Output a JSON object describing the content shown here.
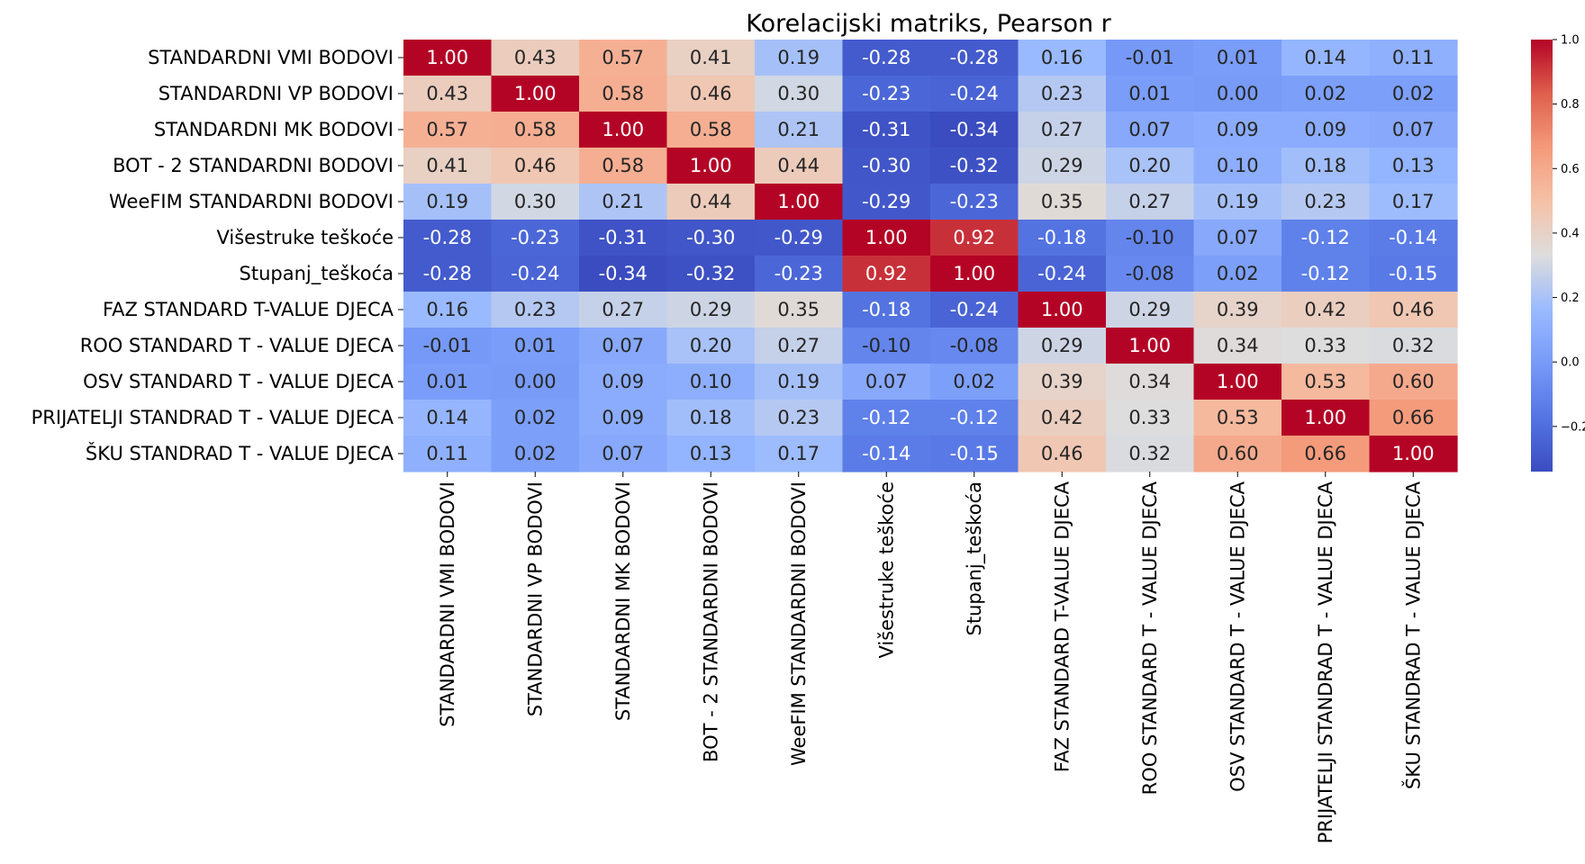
{
  "chart_data": {
    "type": "heatmap",
    "title": "Korelacijski matriks, Pearson r",
    "xlabel": "",
    "ylabel": "",
    "row_labels": [
      "STANDARDNI VMI BODOVI",
      "STANDARDNI VP BODOVI",
      "STANDARDNI MK BODOVI",
      "BOT - 2 STANDARDNI BODOVI",
      "WeeFIM STANDARDNI BODOVI",
      "Višestruke teškoće",
      "Stupanj_teškoća",
      "FAZ STANDARD T-VALUE DJECA",
      "ROO STANDARD T - VALUE DJECA",
      "OSV STANDARD T - VALUE DJECA",
      "PRIJATELJI STANDRAD T - VALUE DJECA",
      "ŠKU STANDRAD T - VALUE DJECA"
    ],
    "column_labels": [
      "STANDARDNI VMI BODOVI",
      "STANDARDNI VP BODOVI",
      "STANDARDNI MK BODOVI",
      "BOT - 2 STANDARDNI BODOVI",
      "WeeFIM STANDARDNI BODOVI",
      "Višestruke teškoće",
      "Stupanj_teškoća",
      "FAZ STANDARD T-VALUE DJECA",
      "ROO STANDARD T - VALUE DJECA",
      "OSV STANDARD T - VALUE DJECA",
      "PRIJATELJI STANDRAD T - VALUE DJECA",
      "ŠKU STANDRAD T - VALUE DJECA"
    ],
    "values": [
      [
        1.0,
        0.43,
        0.57,
        0.41,
        0.19,
        -0.28,
        -0.28,
        0.16,
        -0.01,
        0.01,
        0.14,
        0.11
      ],
      [
        0.43,
        1.0,
        0.58,
        0.46,
        0.3,
        -0.23,
        -0.24,
        0.23,
        0.01,
        0.0,
        0.02,
        0.02
      ],
      [
        0.57,
        0.58,
        1.0,
        0.58,
        0.21,
        -0.31,
        -0.34,
        0.27,
        0.07,
        0.09,
        0.09,
        0.07
      ],
      [
        0.41,
        0.46,
        0.58,
        1.0,
        0.44,
        -0.3,
        -0.32,
        0.29,
        0.2,
        0.1,
        0.18,
        0.13
      ],
      [
        0.19,
        0.3,
        0.21,
        0.44,
        1.0,
        -0.29,
        -0.23,
        0.35,
        0.27,
        0.19,
        0.23,
        0.17
      ],
      [
        -0.28,
        -0.23,
        -0.31,
        -0.3,
        -0.29,
        1.0,
        0.92,
        -0.18,
        -0.1,
        0.07,
        -0.12,
        -0.14
      ],
      [
        -0.28,
        -0.24,
        -0.34,
        -0.32,
        -0.23,
        0.92,
        1.0,
        -0.24,
        -0.08,
        0.02,
        -0.12,
        -0.15
      ],
      [
        0.16,
        0.23,
        0.27,
        0.29,
        0.35,
        -0.18,
        -0.24,
        1.0,
        0.29,
        0.39,
        0.42,
        0.46
      ],
      [
        -0.01,
        0.01,
        0.07,
        0.2,
        0.27,
        -0.1,
        -0.08,
        0.29,
        1.0,
        0.34,
        0.33,
        0.32
      ],
      [
        0.01,
        0.0,
        0.09,
        0.1,
        0.19,
        0.07,
        0.02,
        0.39,
        0.34,
        1.0,
        0.53,
        0.6
      ],
      [
        0.14,
        0.02,
        0.09,
        0.18,
        0.23,
        -0.12,
        -0.12,
        0.42,
        0.33,
        0.53,
        1.0,
        0.66
      ],
      [
        0.11,
        0.02,
        0.07,
        0.13,
        0.17,
        -0.14,
        -0.15,
        0.46,
        0.32,
        0.6,
        0.66,
        1.0
      ]
    ],
    "value_format": "2 decimals",
    "colormap": "coolwarm",
    "color_range": [
      -0.34,
      1.0
    ],
    "colors": {
      "low": "#3b4cc0",
      "mid": "#dddddd",
      "high": "#b40426"
    },
    "colorbar": {
      "ticks": [
        1.0,
        0.8,
        0.6,
        0.4,
        0.2,
        0.0,
        -0.2
      ],
      "tick_labels": [
        "1.0",
        "0.8",
        "0.6",
        "0.4",
        "0.2",
        "0.0",
        "−0.2"
      ]
    },
    "grid": false,
    "legend": "colorbar on the right"
  }
}
